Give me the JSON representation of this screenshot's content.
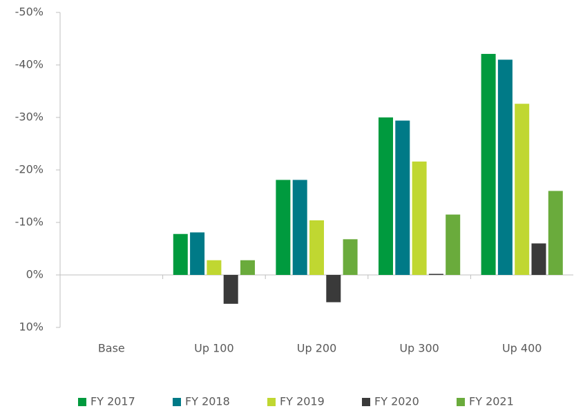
{
  "chart_data": {
    "type": "bar",
    "categories": [
      "Base",
      "Up 100",
      "Up 200",
      "Up 300",
      "Up 400"
    ],
    "series": [
      {
        "name": "FY 2017",
        "color": "#009a3e",
        "values": [
          0,
          -7.8,
          -18.1,
          -30.0,
          -42.1
        ]
      },
      {
        "name": "FY 2018",
        "color": "#007a87",
        "values": [
          0,
          -8.1,
          -18.1,
          -29.4,
          -41.0
        ]
      },
      {
        "name": "FY 2019",
        "color": "#c0d731",
        "values": [
          0,
          -2.8,
          -10.4,
          -21.6,
          -32.6
        ]
      },
      {
        "name": "FY 2020",
        "color": "#3a3a3a",
        "values": [
          0,
          5.5,
          5.2,
          -0.2,
          -6.0
        ]
      },
      {
        "name": "FY 2021",
        "color": "#6aab3c",
        "values": [
          0,
          -2.8,
          -6.8,
          -11.5,
          -16.0
        ]
      }
    ],
    "ylim": [
      10,
      -50
    ],
    "yticks": [
      {
        "value": -50,
        "label": "-50%"
      },
      {
        "value": -40,
        "label": "-40%"
      },
      {
        "value": -30,
        "label": "-30%"
      },
      {
        "value": -20,
        "label": "-20%"
      },
      {
        "value": -10,
        "label": "-10%"
      },
      {
        "value": 0,
        "label": "0%"
      },
      {
        "value": 10,
        "label": "10%"
      }
    ],
    "legend": "bottom"
  }
}
